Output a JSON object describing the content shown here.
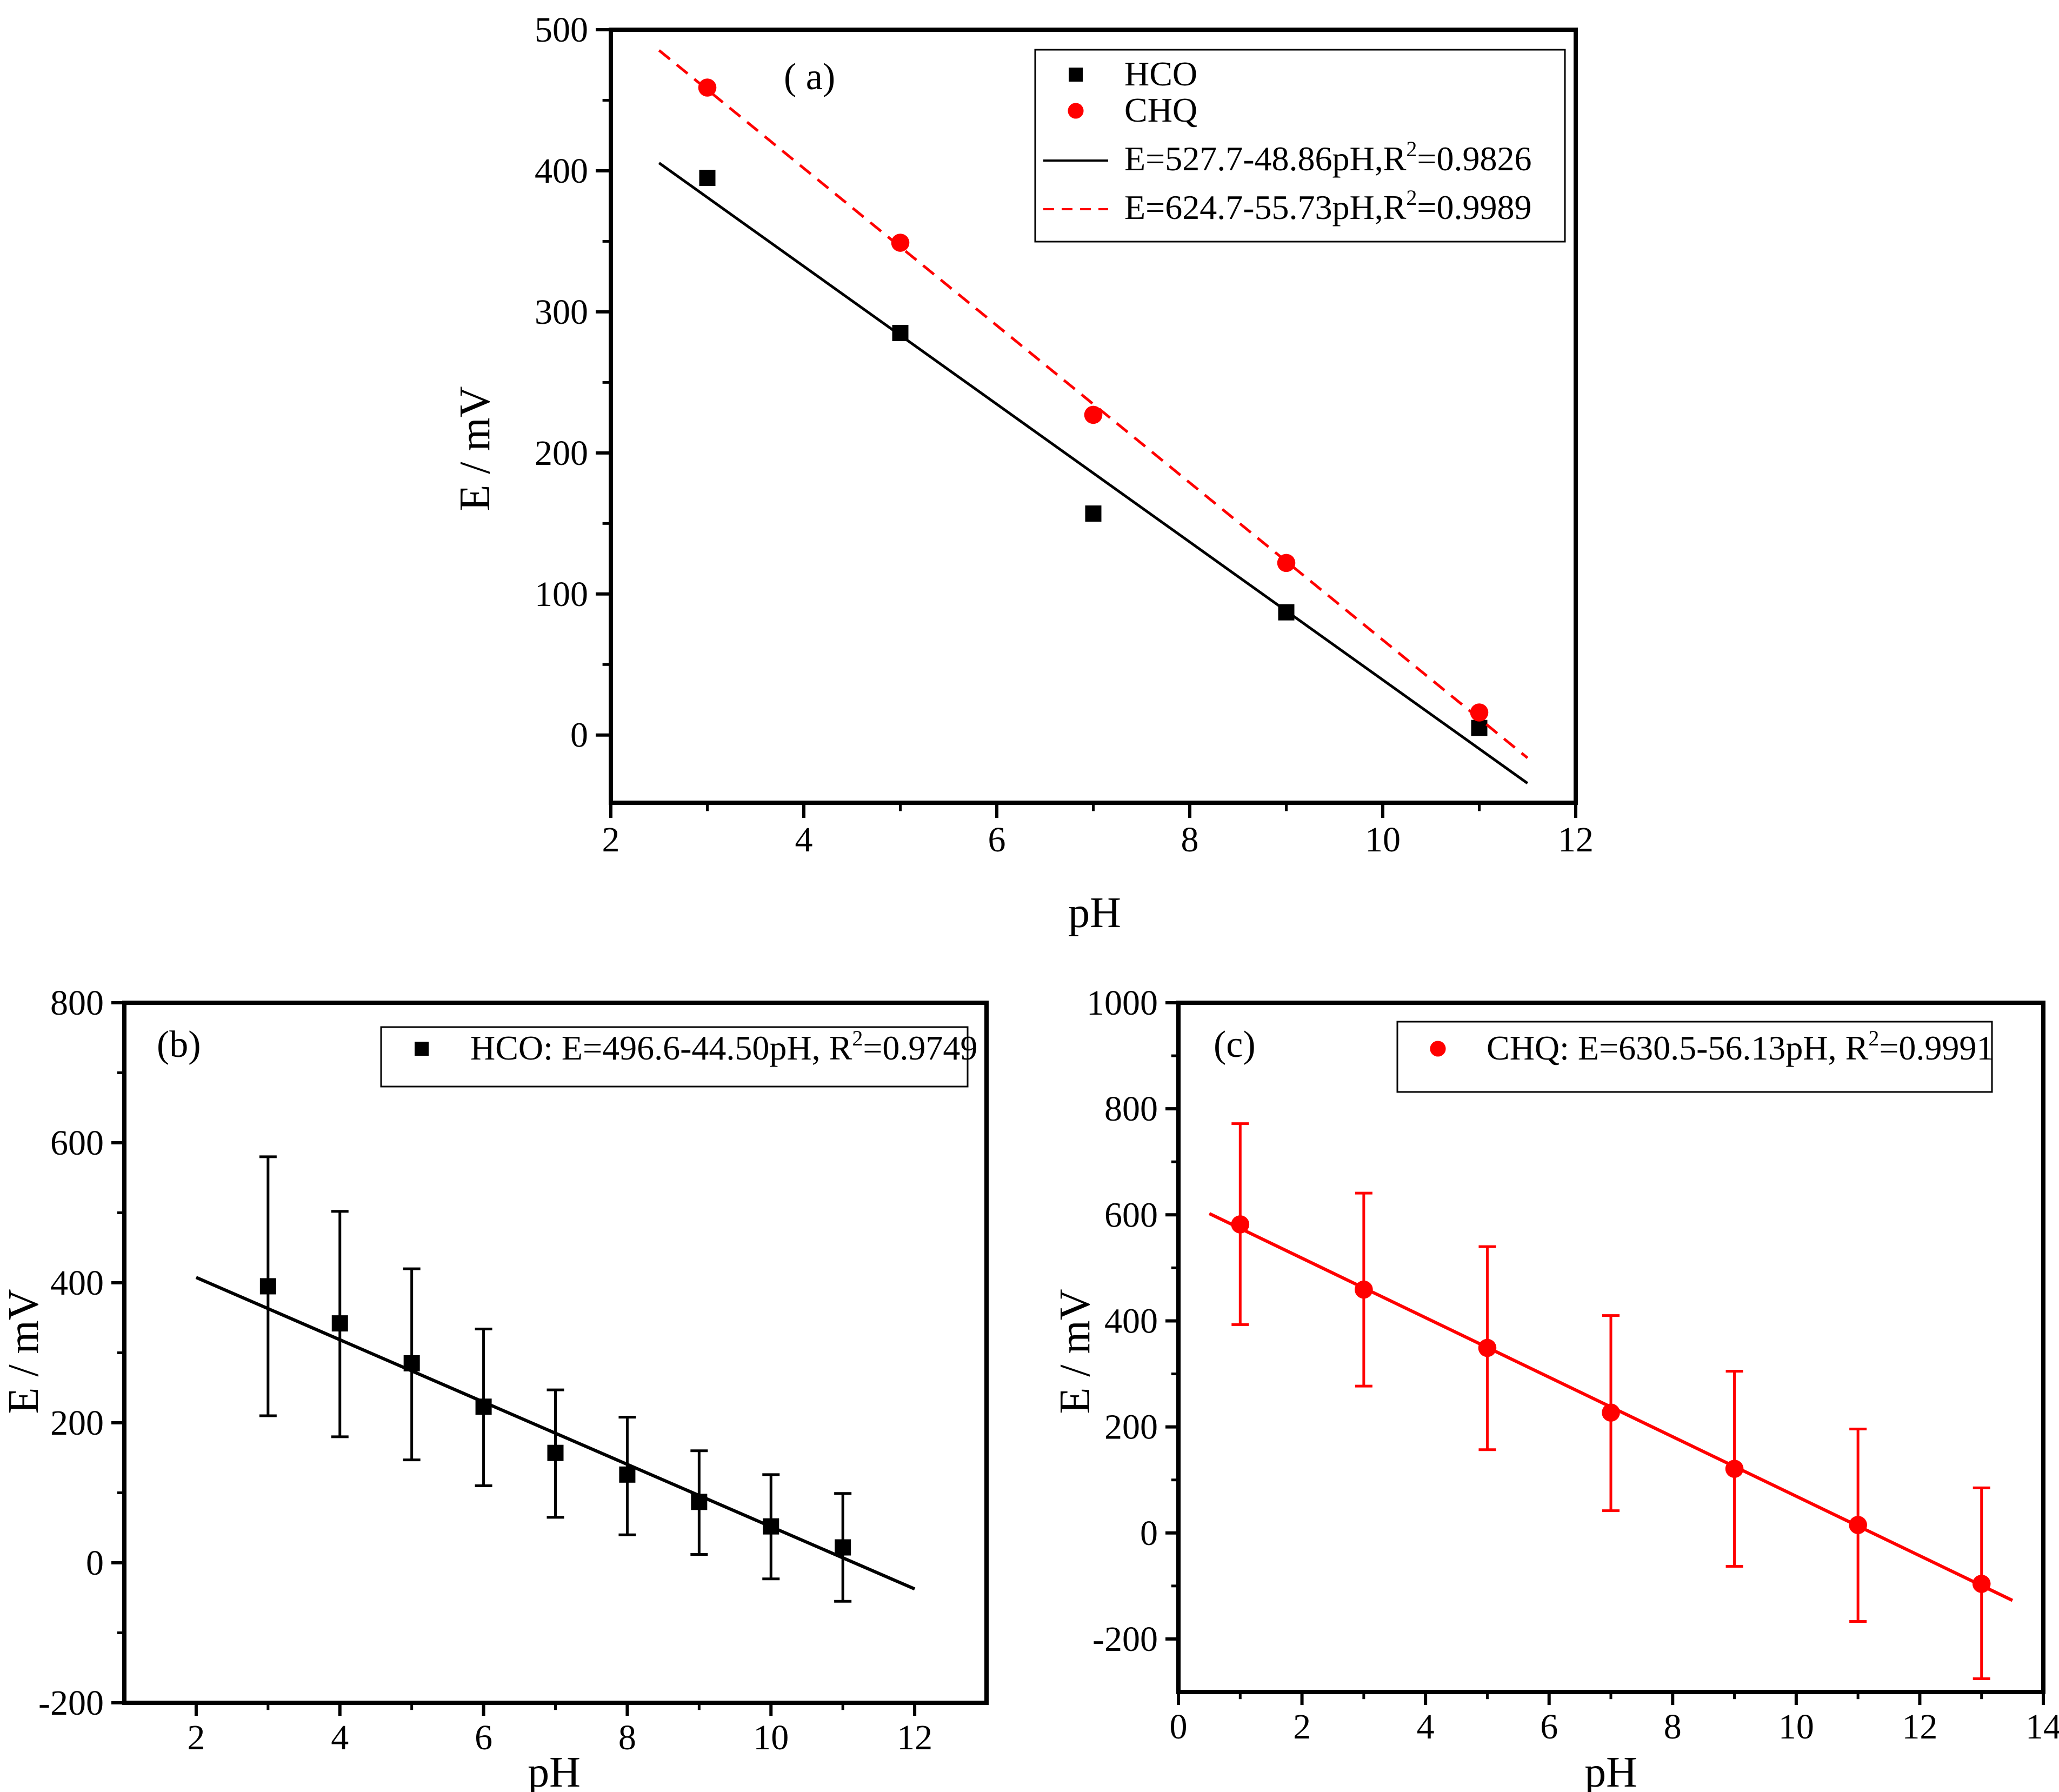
{
  "colors": {
    "black": "#000000",
    "red": "#ff0000"
  },
  "chart_data": [
    {
      "id": "a",
      "type": "scatter",
      "panel_label": "( a)",
      "xlabel": "pH",
      "ylabel": "E / mV",
      "xlim": [
        2,
        12
      ],
      "ylim": [
        -48,
        500
      ],
      "xticks": [
        2,
        4,
        6,
        8,
        10,
        12
      ],
      "yticks": [
        0,
        100,
        200,
        300,
        400,
        500
      ],
      "series": [
        {
          "name": "HCO",
          "kind": "points",
          "marker": "square",
          "color": "#000000",
          "x": [
            3,
            5,
            7,
            9,
            11
          ],
          "y": [
            395,
            285,
            157,
            87,
            5
          ]
        },
        {
          "name": "CHQ",
          "kind": "points",
          "marker": "circle",
          "color": "#ff0000",
          "x": [
            3,
            5,
            7,
            9,
            11
          ],
          "y": [
            459,
            349,
            227,
            122,
            16
          ]
        },
        {
          "name_prefix": "E=527.7-48.86pH,R",
          "name_sup": "2",
          "name_suffix": "=0.9826",
          "kind": "fit",
          "dash": "solid",
          "color": "#000000",
          "intercept": 527.7,
          "slope": -48.86,
          "xrange": [
            2.5,
            11.5
          ]
        },
        {
          "name_prefix": "E=624.7-55.73pH,R",
          "name_sup": "2",
          "name_suffix": "=0.9989",
          "kind": "fit",
          "dash": "dashed",
          "color": "#ff0000",
          "intercept": 624.7,
          "slope": -55.73,
          "xrange": [
            2.5,
            11.5
          ]
        }
      ]
    },
    {
      "id": "b",
      "type": "scatter",
      "panel_label": "(b)",
      "xlabel": "pH",
      "ylabel": "E / mV",
      "xlim": [
        1,
        13
      ],
      "ylim": [
        -200,
        800
      ],
      "xticks": [
        2,
        4,
        6,
        8,
        10,
        12
      ],
      "yticks": [
        -200,
        0,
        200,
        400,
        600,
        800
      ],
      "series": [
        {
          "name_prefix": "HCO: E=496.6-44.50pH, R",
          "name_sup": "2",
          "name_suffix": "=0.9749",
          "kind": "points_errorbars",
          "marker": "square",
          "color": "#000000",
          "x": [
            3,
            4,
            5,
            6,
            7,
            8,
            9,
            10,
            11
          ],
          "y": [
            395,
            342,
            285,
            223,
            157,
            126,
            87,
            52,
            22
          ],
          "err_low": [
            210,
            180,
            147,
            110,
            65,
            40,
            12,
            -23,
            -55
          ],
          "err_high": [
            580,
            502,
            420,
            334,
            247,
            208,
            160,
            126,
            99
          ],
          "fit": {
            "intercept": 496.6,
            "slope": -44.5,
            "xrange": [
              2,
              12
            ]
          }
        }
      ]
    },
    {
      "id": "c",
      "type": "scatter",
      "panel_label": "(c)",
      "xlabel": "pH",
      "ylabel": "E / mV",
      "xlim": [
        0,
        14
      ],
      "ylim": [
        -300,
        1000
      ],
      "xticks": [
        0,
        2,
        4,
        6,
        8,
        10,
        12,
        14
      ],
      "yticks": [
        -200,
        0,
        200,
        400,
        600,
        800,
        1000
      ],
      "series": [
        {
          "name_prefix": "CHQ: E=630.5-56.13pH, R",
          "name_sup": "2",
          "name_suffix": "=0.9991",
          "kind": "points_errorbars",
          "marker": "circle",
          "color": "#ff0000",
          "x": [
            1,
            3,
            5,
            7,
            9,
            11,
            13
          ],
          "y": [
            582,
            459,
            349,
            227,
            121,
            15,
            -96
          ],
          "err_low": [
            393,
            277,
            157,
            42,
            -63,
            -167,
            -275
          ],
          "err_high": [
            772,
            641,
            540,
            410,
            305,
            196,
            85
          ],
          "fit": {
            "intercept": 630.5,
            "slope": -56.13,
            "xrange": [
              0.5,
              13.5
            ]
          }
        }
      ]
    }
  ]
}
